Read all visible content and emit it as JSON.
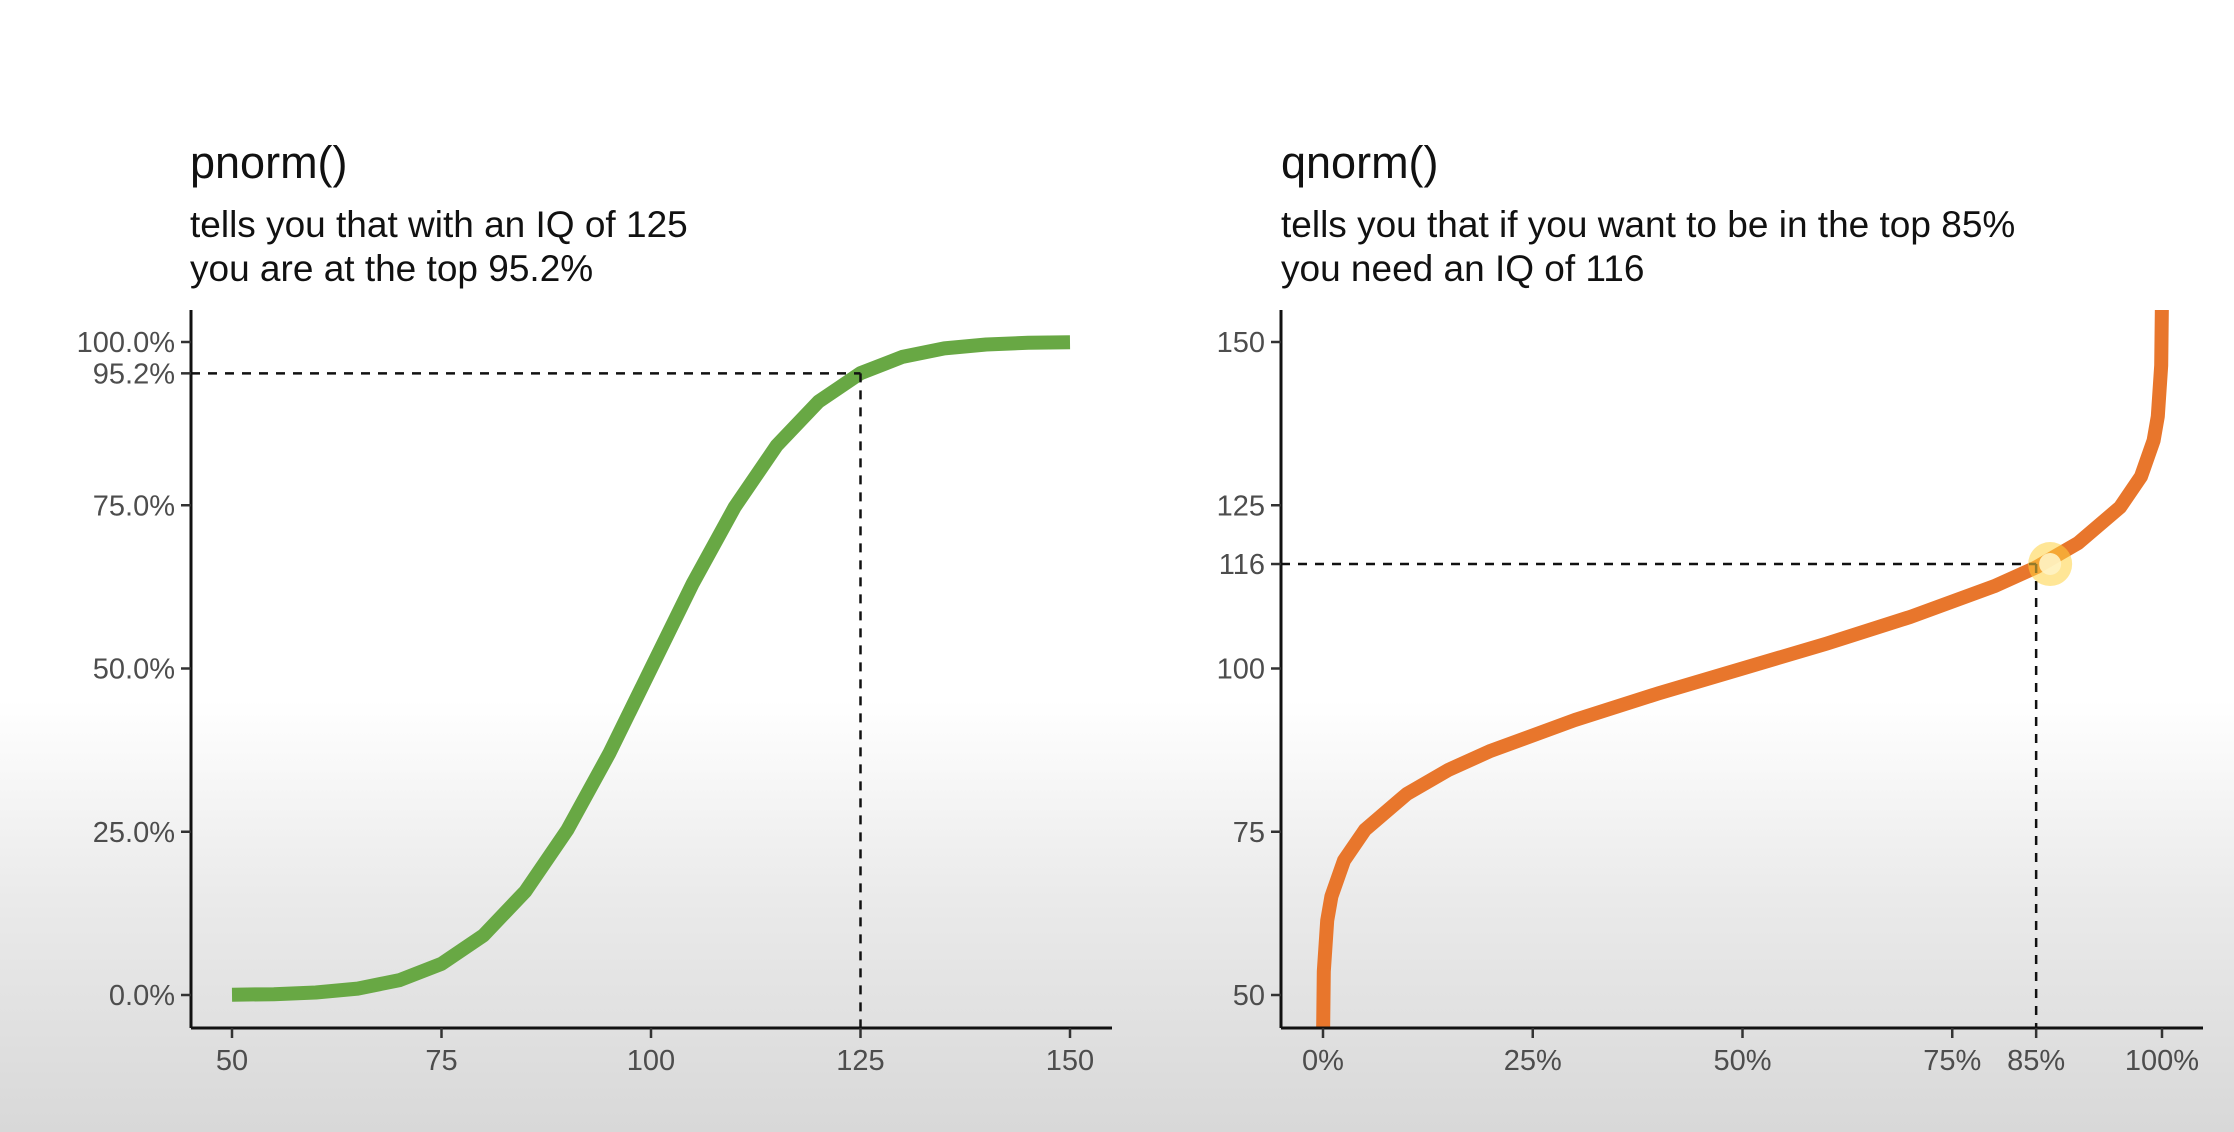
{
  "chart_data": [
    {
      "type": "line",
      "title": "pnorm()",
      "subtitle": [
        "tells you that with an IQ of 125",
        "you are at the top 95.2%"
      ],
      "xlabel": "",
      "ylabel": "",
      "xlim": [
        50,
        150
      ],
      "ylim": [
        0,
        1
      ],
      "grid": false,
      "x_ticks": [
        50,
        75,
        100,
        125,
        150
      ],
      "y_ticks": [
        0,
        0.25,
        0.5,
        0.75,
        0.952,
        1
      ],
      "y_tick_labels": [
        "0.0%",
        "25.0%",
        "50.0%",
        "75.0%",
        "95.2%",
        "100.0%"
      ],
      "series": [
        {
          "color": "#68a844",
          "x": [
            50,
            55,
            60,
            65,
            70,
            75,
            80,
            85,
            90,
            95,
            100,
            105,
            110,
            115,
            120,
            125,
            130,
            135,
            140,
            145,
            150
          ],
          "y": [
            0.0004,
            0.0013,
            0.0038,
            0.0098,
            0.0228,
            0.0478,
            0.0912,
            0.1587,
            0.2525,
            0.3694,
            0.5,
            0.6306,
            0.7475,
            0.8413,
            0.9088,
            0.9522,
            0.9772,
            0.9902,
            0.9962,
            0.9987,
            0.9996
          ]
        }
      ],
      "reference": {
        "x": 125,
        "y": 0.952
      }
    },
    {
      "type": "line",
      "title": "qnorm()",
      "subtitle": [
        "tells you that if you want to be in the top 85%",
        "you need an IQ of 116"
      ],
      "xlabel": "",
      "ylabel": "",
      "xlim": [
        0,
        1
      ],
      "ylim": [
        50,
        150
      ],
      "grid": false,
      "x_ticks": [
        0,
        0.25,
        0.5,
        0.75,
        0.85,
        1
      ],
      "x_tick_labels": [
        "0%",
        "25%",
        "50%",
        "75%",
        "85%",
        "100%"
      ],
      "y_ticks": [
        50,
        75,
        100,
        116,
        125,
        150
      ],
      "series": [
        {
          "color": "#e8762c",
          "x": [
            0.0001,
            0.001,
            0.005,
            0.01,
            0.025,
            0.05,
            0.1,
            0.15,
            0.2,
            0.3,
            0.4,
            0.5,
            0.6,
            0.7,
            0.8,
            0.85,
            0.9,
            0.95,
            0.975,
            0.99,
            0.995,
            0.999,
            0.9999
          ],
          "y": [
            44.2,
            53.6,
            61.4,
            65.1,
            70.6,
            75.3,
            80.8,
            84.5,
            87.4,
            92.1,
            96.2,
            100,
            103.8,
            107.9,
            112.6,
            115.5,
            119.2,
            124.7,
            129.4,
            134.9,
            138.6,
            146.4,
            155.8
          ]
        }
      ],
      "reference": {
        "x": 0.85,
        "y": 116
      }
    }
  ]
}
